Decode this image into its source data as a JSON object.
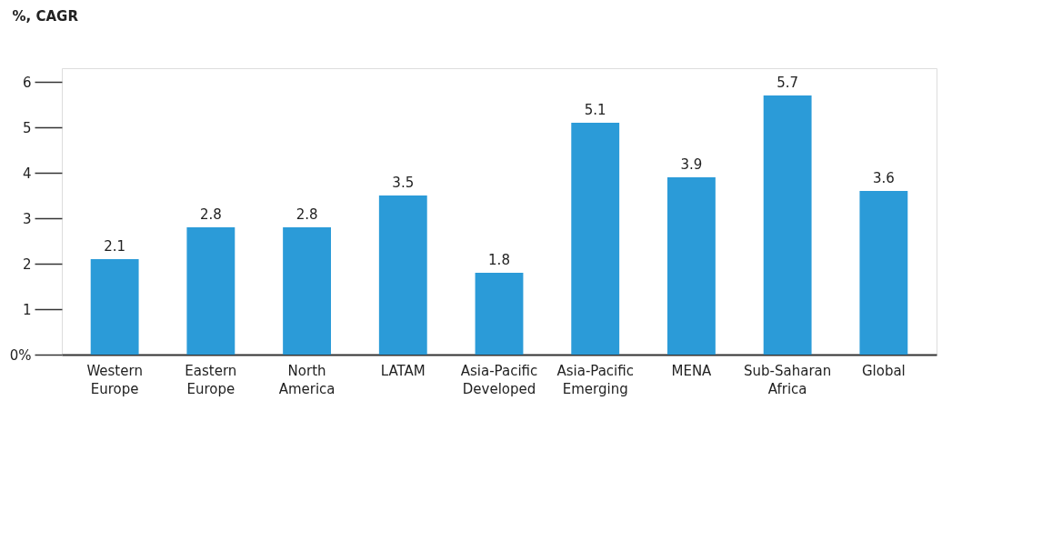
{
  "chart_data": {
    "type": "bar",
    "ylabel": "%, CAGR",
    "categories": [
      "Western Europe",
      "Eastern Europe",
      "North America",
      "LATAM",
      "Asia-Pacific Developed",
      "Asia-Pacific Emerging",
      "MENA",
      "Sub-Saharan Africa",
      "Global"
    ],
    "values": [
      2.1,
      2.8,
      2.8,
      3.5,
      1.8,
      5.1,
      3.9,
      5.7,
      3.6
    ],
    "color": "#2b9bd8",
    "ylim": [
      0,
      6.3
    ],
    "yticks": [
      {
        "value": 0,
        "label": "0%"
      },
      1,
      2,
      3,
      4,
      5,
      6
    ],
    "data_labels": true,
    "grid": false
  }
}
